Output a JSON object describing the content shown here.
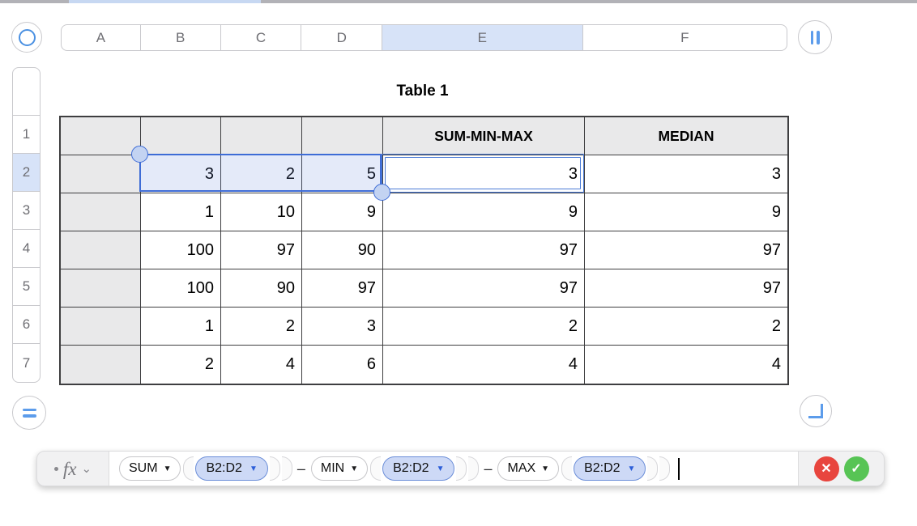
{
  "column_header_bar": {
    "columns": [
      {
        "label": "A",
        "selected": false
      },
      {
        "label": "B",
        "selected": false
      },
      {
        "label": "C",
        "selected": false
      },
      {
        "label": "D",
        "selected": false
      },
      {
        "label": "E",
        "selected": true
      },
      {
        "label": "F",
        "selected": false
      }
    ]
  },
  "row_header_bar": {
    "rows": [
      {
        "label": "",
        "selected": false
      },
      {
        "label": "1",
        "selected": false
      },
      {
        "label": "2",
        "selected": true
      },
      {
        "label": "3",
        "selected": false
      },
      {
        "label": "4",
        "selected": false
      },
      {
        "label": "5",
        "selected": false
      },
      {
        "label": "6",
        "selected": false
      },
      {
        "label": "7",
        "selected": false
      }
    ]
  },
  "sheet": {
    "table_title": "Table 1",
    "header_row": [
      "",
      "",
      "",
      "",
      "SUM-MIN-MAX",
      "MEDIAN"
    ],
    "data_rows": [
      [
        "",
        "3",
        "2",
        "5",
        "3",
        "3"
      ],
      [
        "",
        "1",
        "10",
        "9",
        "9",
        "9"
      ],
      [
        "",
        "100",
        "97",
        "90",
        "97",
        "97"
      ],
      [
        "",
        "100",
        "90",
        "97",
        "97",
        "97"
      ],
      [
        "",
        "1",
        "2",
        "3",
        "2",
        "2"
      ],
      [
        "",
        "2",
        "4",
        "6",
        "4",
        "4"
      ]
    ],
    "selected_range": "B2:D2",
    "editing_cell": "E2"
  },
  "formula_bar": {
    "fx_label": "fx",
    "tokens": [
      {
        "type": "function",
        "label": "SUM"
      },
      {
        "type": "paren-open"
      },
      {
        "type": "range",
        "label": "B2:D2"
      },
      {
        "type": "paren-close"
      },
      {
        "type": "paren-close"
      },
      {
        "type": "operator",
        "label": "–"
      },
      {
        "type": "function",
        "label": "MIN"
      },
      {
        "type": "paren-open"
      },
      {
        "type": "range",
        "label": "B2:D2"
      },
      {
        "type": "paren-close"
      },
      {
        "type": "paren-close"
      },
      {
        "type": "operator",
        "label": "–"
      },
      {
        "type": "function",
        "label": "MAX"
      },
      {
        "type": "paren-open"
      },
      {
        "type": "range",
        "label": "B2:D2"
      },
      {
        "type": "paren-close"
      },
      {
        "type": "paren-close"
      },
      {
        "type": "cursor"
      }
    ],
    "cancel_icon": "✕",
    "accept_icon": "✓"
  },
  "icons": {
    "dropdown_arrow": "▼",
    "fx_chevron": "⌄"
  },
  "colors": {
    "selection_blue": "#3e6cd6",
    "strip_selected_blue": "#d7e3f8",
    "range_pill_blue": "#cdd9f6",
    "cancel_red": "#e8453e",
    "accept_green": "#57c455",
    "grid_border": "#3e3e40",
    "shaded_cell": "#e9e9ea"
  }
}
